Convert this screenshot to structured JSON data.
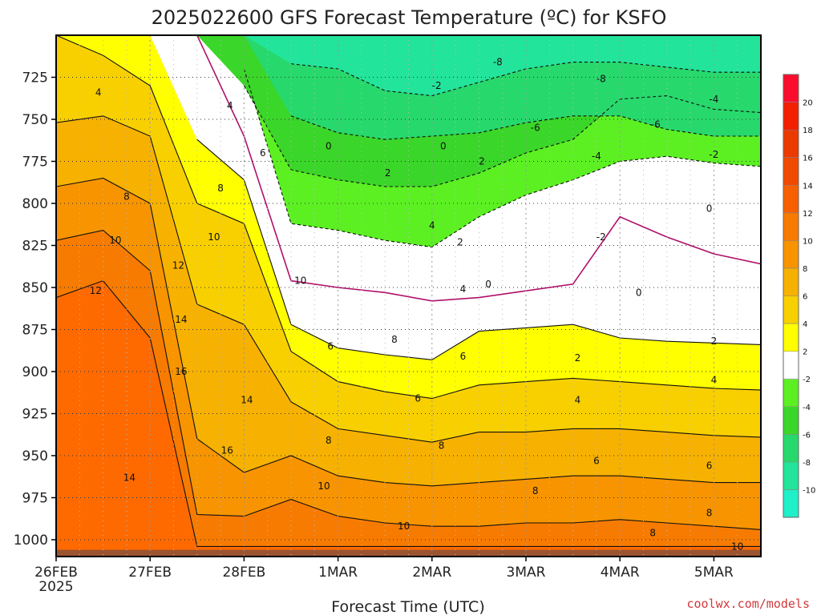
{
  "chart_data": {
    "type": "heatmap",
    "title": "2025022600 GFS Forecast Temperature (ºC) for KSFO",
    "xlabel": "Forecast Time (UTC)",
    "ylabel": "",
    "credit": "coolwx.com/models",
    "x_year_label": "2025",
    "x_ticks": [
      {
        "label": "26FEB",
        "day": 0
      },
      {
        "label": "27FEB",
        "day": 1
      },
      {
        "label": "28FEB",
        "day": 2
      },
      {
        "label": "1MAR",
        "day": 3
      },
      {
        "label": "2MAR",
        "day": 4
      },
      {
        "label": "3MAR",
        "day": 5
      },
      {
        "label": "4MAR",
        "day": 6
      },
      {
        "label": "5MAR",
        "day": 7
      }
    ],
    "xlim_days": [
      0,
      7.5
    ],
    "y_ticks": [
      725,
      750,
      775,
      800,
      825,
      850,
      875,
      900,
      925,
      950,
      975,
      1000
    ],
    "ylim_hpa": [
      1010,
      700
    ],
    "y_inverted": true,
    "grid": true,
    "colorbar": {
      "levels": [
        -12,
        -10,
        -8,
        -6,
        -4,
        -2,
        2,
        4,
        6,
        8,
        10,
        12,
        14,
        16,
        18,
        20,
        22
      ],
      "tick_labels": [
        "20",
        "18",
        "16",
        "14",
        "12",
        "10",
        "8",
        "6",
        "4",
        "2",
        "-2",
        "-4",
        "-6",
        "-8",
        "-10"
      ],
      "colors": [
        "#1ff0c8",
        "#22e49a",
        "#27d96c",
        "#3ad629",
        "#5cf023",
        "#ffffff",
        "#ffff00",
        "#f8d000",
        "#f7b100",
        "#f79400",
        "#f77b00",
        "#f66000",
        "#f04a00",
        "#ea3a00",
        "#f21f00",
        "#fa0d2c"
      ]
    },
    "contour_labels": [
      {
        "text": "4",
        "day": 0.45,
        "p": 734
      },
      {
        "text": "4",
        "day": 1.85,
        "p": 742
      },
      {
        "text": "6",
        "day": 2.2,
        "p": 770
      },
      {
        "text": "8",
        "day": 0.75,
        "p": 796
      },
      {
        "text": "8",
        "day": 1.75,
        "p": 791
      },
      {
        "text": "10",
        "day": 0.63,
        "p": 822
      },
      {
        "text": "10",
        "day": 1.68,
        "p": 820
      },
      {
        "text": "12",
        "day": 1.3,
        "p": 837
      },
      {
        "text": "12",
        "day": 0.42,
        "p": 852
      },
      {
        "text": "10",
        "day": 2.6,
        "p": 846
      },
      {
        "text": "14",
        "day": 1.33,
        "p": 869
      },
      {
        "text": "16",
        "day": 1.33,
        "p": 900
      },
      {
        "text": "14",
        "day": 2.03,
        "p": 917
      },
      {
        "text": "16",
        "day": 1.82,
        "p": 947
      },
      {
        "text": "14",
        "day": 0.78,
        "p": 963
      },
      {
        "text": "6",
        "day": 2.92,
        "p": 885
      },
      {
        "text": "8",
        "day": 2.9,
        "p": 941
      },
      {
        "text": "10",
        "day": 2.85,
        "p": 968
      },
      {
        "text": "8",
        "day": 3.6,
        "p": 881
      },
      {
        "text": "6",
        "day": 3.85,
        "p": 916
      },
      {
        "text": "8",
        "day": 4.1,
        "p": 944
      },
      {
        "text": "10",
        "day": 3.7,
        "p": 992
      },
      {
        "text": "0",
        "day": 2.9,
        "p": 766
      },
      {
        "text": "2",
        "day": 3.53,
        "p": 782
      },
      {
        "text": "4",
        "day": 4.0,
        "p": 813
      },
      {
        "text": "2",
        "day": 4.3,
        "p": 823
      },
      {
        "text": "4",
        "day": 4.33,
        "p": 851
      },
      {
        "text": "6",
        "day": 4.33,
        "p": 891
      },
      {
        "text": "0",
        "day": 4.12,
        "p": 766
      },
      {
        "text": "2",
        "day": 4.53,
        "p": 775
      },
      {
        "text": "-2",
        "day": 4.05,
        "p": 730
      },
      {
        "text": "-8",
        "day": 4.7,
        "p": 716
      },
      {
        "text": "-8",
        "day": 5.8,
        "p": 726
      },
      {
        "text": "-6",
        "day": 5.1,
        "p": 755
      },
      {
        "text": "-6",
        "day": 6.38,
        "p": 753
      },
      {
        "text": "-4",
        "day": 7.0,
        "p": 738
      },
      {
        "text": "-4",
        "day": 5.75,
        "p": 772
      },
      {
        "text": "-2",
        "day": 7.0,
        "p": 771
      },
      {
        "text": "-2",
        "day": 5.8,
        "p": 820
      },
      {
        "text": "0",
        "day": 4.6,
        "p": 848
      },
      {
        "text": "0",
        "day": 6.2,
        "p": 853
      },
      {
        "text": "0",
        "day": 6.95,
        "p": 803
      },
      {
        "text": "2",
        "day": 5.55,
        "p": 892
      },
      {
        "text": "2",
        "day": 7.0,
        "p": 882
      },
      {
        "text": "4",
        "day": 5.55,
        "p": 917
      },
      {
        "text": "4",
        "day": 7.0,
        "p": 905
      },
      {
        "text": "6",
        "day": 5.75,
        "p": 953
      },
      {
        "text": "6",
        "day": 6.95,
        "p": 956
      },
      {
        "text": "8",
        "day": 5.1,
        "p": 971
      },
      {
        "text": "8",
        "day": 6.35,
        "p": 996
      },
      {
        "text": "8",
        "day": 6.95,
        "p": 984
      },
      {
        "text": "10",
        "day": 7.25,
        "p": 1004
      }
    ],
    "isotherm_profiles": [
      {
        "value": -8,
        "pressures": [
          null,
          null,
          null,
          null,
          null,
          717,
          720,
          733,
          736,
          728,
          720,
          716,
          716,
          719,
          722,
          722
        ]
      },
      {
        "value": -6,
        "pressures": [
          null,
          null,
          null,
          null,
          null,
          748,
          758,
          762,
          760,
          758,
          752,
          748,
          748,
          756,
          760,
          760
        ]
      },
      {
        "value": -4,
        "pressures": [
          null,
          null,
          null,
          null,
          730,
          780,
          786,
          790,
          790,
          782,
          770,
          762,
          738,
          736,
          744,
          746
        ]
      },
      {
        "value": -2,
        "pressures": [
          null,
          null,
          null,
          null,
          720,
          812,
          816,
          822,
          826,
          808,
          795,
          786,
          775,
          772,
          776,
          778
        ]
      },
      {
        "value": 0,
        "pressures": [
          null,
          null,
          null,
          700,
          760,
          846,
          850,
          853,
          858,
          856,
          852,
          848,
          808,
          820,
          830,
          836
        ]
      },
      {
        "value": 2,
        "pressures": [
          null,
          null,
          null,
          762,
          786,
          872,
          886,
          890,
          893,
          876,
          874,
          872,
          880,
          882,
          883,
          884
        ]
      },
      {
        "value": 4,
        "pressures": [
          700,
          712,
          730,
          800,
          812,
          888,
          906,
          912,
          916,
          908,
          906,
          904,
          906,
          908,
          910,
          911
        ]
      },
      {
        "value": 6,
        "pressures": [
          752,
          748,
          760,
          860,
          872,
          918,
          934,
          938,
          942,
          936,
          936,
          934,
          934,
          936,
          938,
          939
        ]
      },
      {
        "value": 8,
        "pressures": [
          790,
          785,
          800,
          940,
          960,
          950,
          962,
          966,
          968,
          966,
          964,
          962,
          962,
          964,
          966,
          966
        ]
      },
      {
        "value": 10,
        "pressures": [
          822,
          816,
          840,
          985,
          986,
          976,
          986,
          990,
          992,
          992,
          990,
          990,
          988,
          990,
          992,
          994
        ]
      },
      {
        "value": 12,
        "pressures": [
          856,
          846,
          880,
          1004,
          1004,
          1004,
          1004,
          1004,
          1004,
          1004,
          1004,
          1004,
          1004,
          1004,
          1004,
          1004
        ]
      }
    ],
    "isotherm_times_days": [
      0,
      0.5,
      1,
      1.5,
      2,
      2.5,
      3,
      3.5,
      4,
      4.5,
      5,
      5.5,
      6,
      6.5,
      7,
      7.5
    ]
  }
}
